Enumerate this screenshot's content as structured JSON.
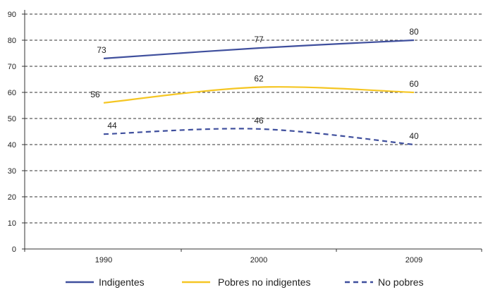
{
  "chart_data": {
    "type": "line",
    "categories": [
      "1990",
      "2000",
      "2009"
    ],
    "ylim": [
      0,
      90
    ],
    "yticks": [
      0,
      10,
      20,
      30,
      40,
      50,
      60,
      70,
      80,
      90
    ],
    "grid": true,
    "legend_position": "bottom",
    "series": [
      {
        "name": "Indigentes",
        "values": [
          73,
          77,
          80
        ],
        "color": "#3f4f9d",
        "dash": "solid"
      },
      {
        "name": "Pobres no indigentes",
        "values": [
          56,
          62,
          60
        ],
        "color": "#f5c623",
        "dash": "solid"
      },
      {
        "name": "No pobres",
        "values": [
          44,
          46,
          40
        ],
        "color": "#3f4f9d",
        "dash": "dashed"
      }
    ]
  }
}
